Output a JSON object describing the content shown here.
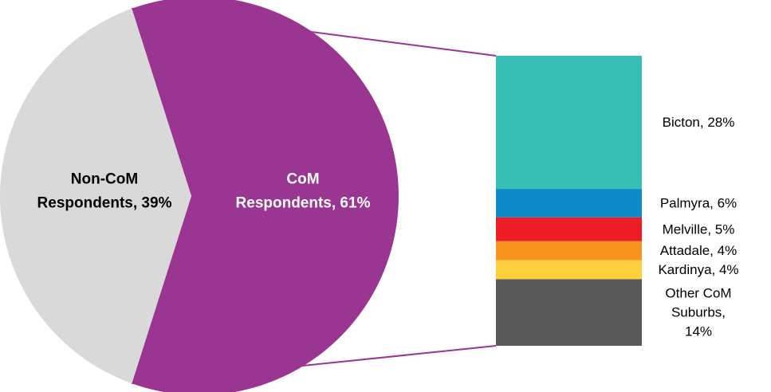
{
  "chart_data": {
    "type": "bar-of-pie",
    "pie": {
      "slices": [
        {
          "label_lines": [
            "CoM",
            "Respondents, 61%"
          ],
          "value": 61,
          "color": "#9b3592",
          "text_color": "#ffffff"
        },
        {
          "label_lines": [
            "Non-CoM",
            "Respondents, 39%"
          ],
          "value": 39,
          "color": "#d9d9d9",
          "text_color": "#000000"
        }
      ]
    },
    "breakdown_of": "CoM Respondents",
    "bar": {
      "segments": [
        {
          "label_lines": [
            "Bicton, 28%"
          ],
          "value": 28,
          "color": "#36bfb5"
        },
        {
          "label_lines": [
            "Palmyra, 6%"
          ],
          "value": 6,
          "color": "#0f8ac9"
        },
        {
          "label_lines": [
            "Melville, 5%"
          ],
          "value": 5,
          "color": "#ee1c25"
        },
        {
          "label_lines": [
            "Attadale, 4%"
          ],
          "value": 4,
          "color": "#f7931e"
        },
        {
          "label_lines": [
            "Kardinya, 4%"
          ],
          "value": 4,
          "color": "#fdd03b"
        },
        {
          "label_lines": [
            "Other CoM",
            "Suburbs,",
            "14%"
          ],
          "value": 14,
          "color": "#595959"
        }
      ]
    },
    "connector_color": "#9b3592"
  }
}
